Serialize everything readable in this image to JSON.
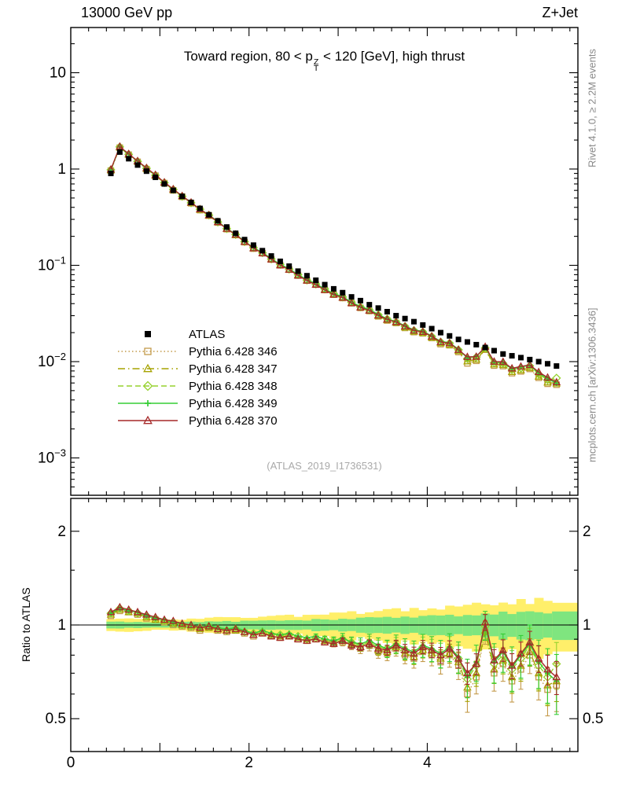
{
  "header": {
    "left": "13000 GeV pp",
    "right": "Z+Jet"
  },
  "title": {
    "pre": "Toward region, 80 < p",
    "sup": "Z",
    "sub": "T",
    "post": " < 120 [GeV], high thrust"
  },
  "watermark": "(ATLAS_2019_I1736531)",
  "side": {
    "right_top": "Rivet 4.1.0, ≥ 2.2M events",
    "right_bottom": "mcplots.cern.ch [arXiv:1306.3436]"
  },
  "ratio_ylabel": "Ratio to ATLAS",
  "legend": {
    "entries": [
      {
        "label": "ATLAS"
      },
      {
        "label": "Pythia 6.428 346"
      },
      {
        "label": "Pythia 6.428 347"
      },
      {
        "label": "Pythia 6.428 348"
      },
      {
        "label": "Pythia 6.428 349"
      },
      {
        "label": "Pythia 6.428 370"
      }
    ]
  },
  "axes": {
    "x": {
      "min": 0,
      "max": 5.69,
      "labeled": [
        0,
        2,
        4
      ],
      "minor_step": 0.2
    },
    "y_main": {
      "scale": "log",
      "ticks": [
        {
          "v": 10,
          "base": "10",
          "exp": ""
        },
        {
          "v": 1,
          "base": "1",
          "exp": ""
        },
        {
          "v": 0.1,
          "base": "10",
          "exp": "−1"
        },
        {
          "v": 0.01,
          "base": "10",
          "exp": "−2"
        },
        {
          "v": 0.001,
          "base": "10",
          "exp": "−3"
        }
      ]
    },
    "y_ratio": {
      "scale": "log",
      "major": [
        {
          "v": 0.5,
          "label": "0.5"
        },
        {
          "v": 1,
          "label": "1"
        },
        {
          "v": 2,
          "label": "2"
        }
      ],
      "minor": [
        0.6,
        0.7,
        0.8,
        0.9,
        1.5
      ]
    }
  },
  "chart_data": {
    "type": "line",
    "title": "Toward region, 80 < pT(Z) < 120 [GeV], high thrust",
    "xlim": [
      0,
      5.69
    ],
    "ylim_main_log": [
      0.0004,
      30
    ],
    "ylim_ratio_log": [
      0.39,
      2.55
    ],
    "xmax": 5.69,
    "x": [
      0.45,
      0.55,
      0.65,
      0.75,
      0.85,
      0.95,
      1.05,
      1.15,
      1.25,
      1.35,
      1.45,
      1.55,
      1.65,
      1.75,
      1.85,
      1.95,
      2.05,
      2.15,
      2.25,
      2.35,
      2.45,
      2.55,
      2.65,
      2.75,
      2.85,
      2.95,
      3.05,
      3.15,
      3.25,
      3.35,
      3.45,
      3.55,
      3.65,
      3.75,
      3.85,
      3.95,
      4.05,
      4.15,
      4.25,
      4.35,
      4.45,
      4.55,
      4.65,
      4.75,
      4.85,
      4.95,
      5.05,
      5.15,
      5.25,
      5.35,
      5.45
    ],
    "atlas": [
      0.9,
      1.5,
      1.28,
      1.1,
      0.95,
      0.82,
      0.7,
      0.6,
      0.52,
      0.45,
      0.39,
      0.335,
      0.29,
      0.25,
      0.215,
      0.185,
      0.162,
      0.142,
      0.125,
      0.11,
      0.098,
      0.087,
      0.078,
      0.07,
      0.063,
      0.057,
      0.052,
      0.047,
      0.043,
      0.039,
      0.036,
      0.033,
      0.03,
      0.028,
      0.026,
      0.024,
      0.022,
      0.02,
      0.0185,
      0.017,
      0.016,
      0.015,
      0.014,
      0.013,
      0.012,
      0.0115,
      0.011,
      0.0105,
      0.01,
      0.0095,
      0.009
    ],
    "atlas_style": {
      "label": "ATLAS",
      "color": "#000000",
      "marker": "square-filled"
    },
    "series": [
      {
        "name": "346",
        "label": "Pythia 6.428 346",
        "color": "#c49a4a",
        "dash": "1.5 3",
        "marker": "square-open",
        "efac": 1.1,
        "ratio": [
          1.07,
          1.11,
          1.1,
          1.08,
          1.05,
          1.04,
          1.02,
          1.0,
          0.99,
          0.98,
          0.96,
          0.98,
          0.96,
          0.95,
          0.96,
          0.94,
          0.92,
          0.94,
          0.92,
          0.91,
          0.92,
          0.9,
          0.89,
          0.9,
          0.88,
          0.87,
          0.88,
          0.86,
          0.84,
          0.86,
          0.82,
          0.81,
          0.84,
          0.8,
          0.78,
          0.82,
          0.8,
          0.76,
          0.8,
          0.74,
          0.6,
          0.68,
          0.95,
          0.7,
          0.75,
          0.66,
          0.72,
          0.8,
          0.68,
          0.62,
          0.64
        ]
      },
      {
        "name": "347",
        "label": "Pythia 6.428 347",
        "color": "#a6a300",
        "dash": "9 4 1.5 4",
        "marker": "triangle-open",
        "efac": 0.9,
        "ratio": [
          1.08,
          1.12,
          1.1,
          1.09,
          1.06,
          1.04,
          1.03,
          1.01,
          1.0,
          0.99,
          0.97,
          0.98,
          0.97,
          0.96,
          0.96,
          0.95,
          0.93,
          0.94,
          0.93,
          0.92,
          0.92,
          0.91,
          0.9,
          0.9,
          0.89,
          0.88,
          0.89,
          0.87,
          0.85,
          0.87,
          0.83,
          0.82,
          0.85,
          0.81,
          0.79,
          0.83,
          0.81,
          0.78,
          0.81,
          0.76,
          0.63,
          0.7,
          0.96,
          0.72,
          0.77,
          0.68,
          0.74,
          0.82,
          0.7,
          0.64,
          0.66
        ]
      },
      {
        "name": "348",
        "label": "Pythia 6.428 348",
        "color": "#96d22e",
        "dash": "7 4",
        "marker": "diamond-open",
        "efac": 1.25,
        "ratio": [
          1.09,
          1.13,
          1.11,
          1.09,
          1.07,
          1.05,
          1.03,
          1.02,
          1.0,
          0.99,
          0.98,
          0.99,
          0.97,
          0.96,
          0.97,
          0.95,
          0.94,
          0.95,
          0.93,
          0.93,
          0.93,
          0.92,
          0.9,
          0.91,
          0.9,
          0.89,
          0.9,
          0.88,
          0.86,
          0.88,
          0.85,
          0.84,
          0.86,
          0.83,
          0.81,
          0.85,
          0.83,
          0.8,
          0.84,
          0.78,
          0.67,
          0.74,
          0.99,
          0.75,
          0.8,
          0.72,
          0.78,
          0.86,
          0.74,
          0.68,
          0.75
        ]
      },
      {
        "name": "349",
        "label": "Pythia 6.428 349",
        "color": "#35cd35",
        "dash": "",
        "marker": "plus",
        "efac": 1.4,
        "ratio": [
          1.09,
          1.13,
          1.11,
          1.1,
          1.07,
          1.05,
          1.04,
          1.02,
          1.01,
          1.0,
          0.98,
          1.0,
          0.98,
          0.97,
          0.98,
          0.96,
          0.94,
          0.96,
          0.94,
          0.93,
          0.94,
          0.92,
          0.91,
          0.92,
          0.9,
          0.89,
          0.91,
          0.88,
          0.87,
          0.89,
          0.86,
          0.84,
          0.87,
          0.84,
          0.82,
          0.86,
          0.84,
          0.81,
          0.85,
          0.79,
          0.68,
          0.76,
          1.0,
          0.76,
          0.82,
          0.73,
          0.8,
          0.87,
          0.76,
          0.7,
          0.66
        ]
      },
      {
        "name": "370",
        "label": "Pythia 6.428 370",
        "color": "#a62929",
        "dash": "",
        "marker": "triangle-open",
        "efac": 0.8,
        "ratio": [
          1.1,
          1.14,
          1.12,
          1.1,
          1.08,
          1.06,
          1.04,
          1.03,
          1.01,
          1.0,
          0.98,
          0.99,
          0.97,
          0.96,
          0.97,
          0.95,
          0.93,
          0.94,
          0.92,
          0.91,
          0.92,
          0.9,
          0.89,
          0.9,
          0.88,
          0.87,
          0.89,
          0.86,
          0.85,
          0.87,
          0.84,
          0.83,
          0.86,
          0.83,
          0.81,
          0.85,
          0.83,
          0.8,
          0.84,
          0.78,
          0.7,
          0.75,
          1.02,
          0.77,
          0.83,
          0.74,
          0.81,
          0.88,
          0.78,
          0.72,
          0.68
        ]
      }
    ],
    "bands": {
      "x": [
        0.4,
        1.0,
        1.5,
        2.0,
        2.5,
        3.0,
        3.5,
        4.0,
        4.5,
        5.0,
        5.7
      ],
      "yellow": [
        0.05,
        0.04,
        0.05,
        0.06,
        0.07,
        0.09,
        0.11,
        0.13,
        0.16,
        0.19,
        0.22
      ],
      "green": [
        0.025,
        0.02,
        0.025,
        0.03,
        0.035,
        0.045,
        0.055,
        0.065,
        0.08,
        0.095,
        0.11
      ]
    },
    "band_colors": {
      "yellow": "#ffef6a",
      "green": "#7fe57f"
    }
  }
}
